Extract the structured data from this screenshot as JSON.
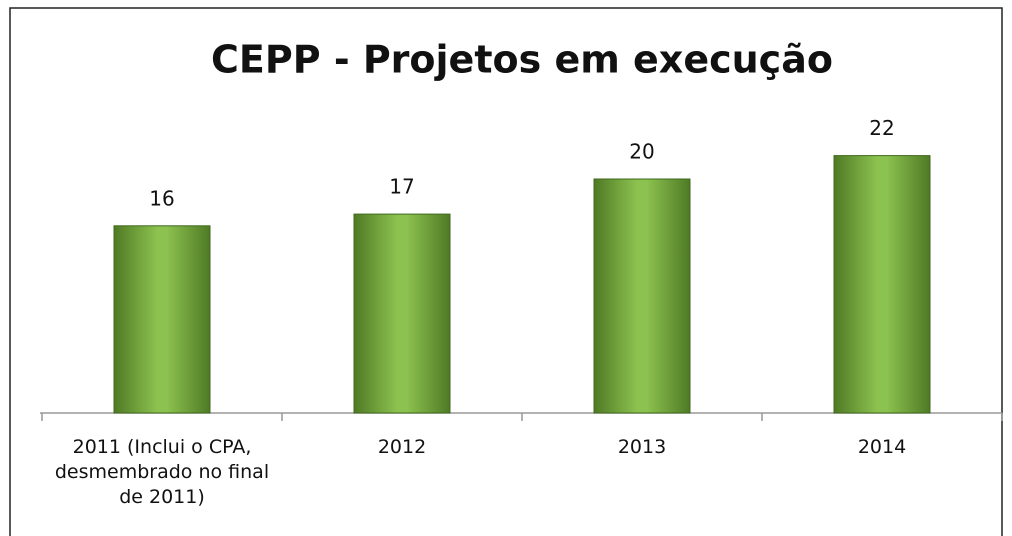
{
  "chart_data": {
    "type": "bar",
    "title": "CEPP - Projetos em execução",
    "categories": [
      "2011 (Inclui o CPA, desmembrado no final de 2011)",
      "2012",
      "2013",
      "2014"
    ],
    "values": [
      16,
      17,
      20,
      22
    ],
    "color": "#77a83e",
    "ylim": [
      0,
      30
    ]
  }
}
